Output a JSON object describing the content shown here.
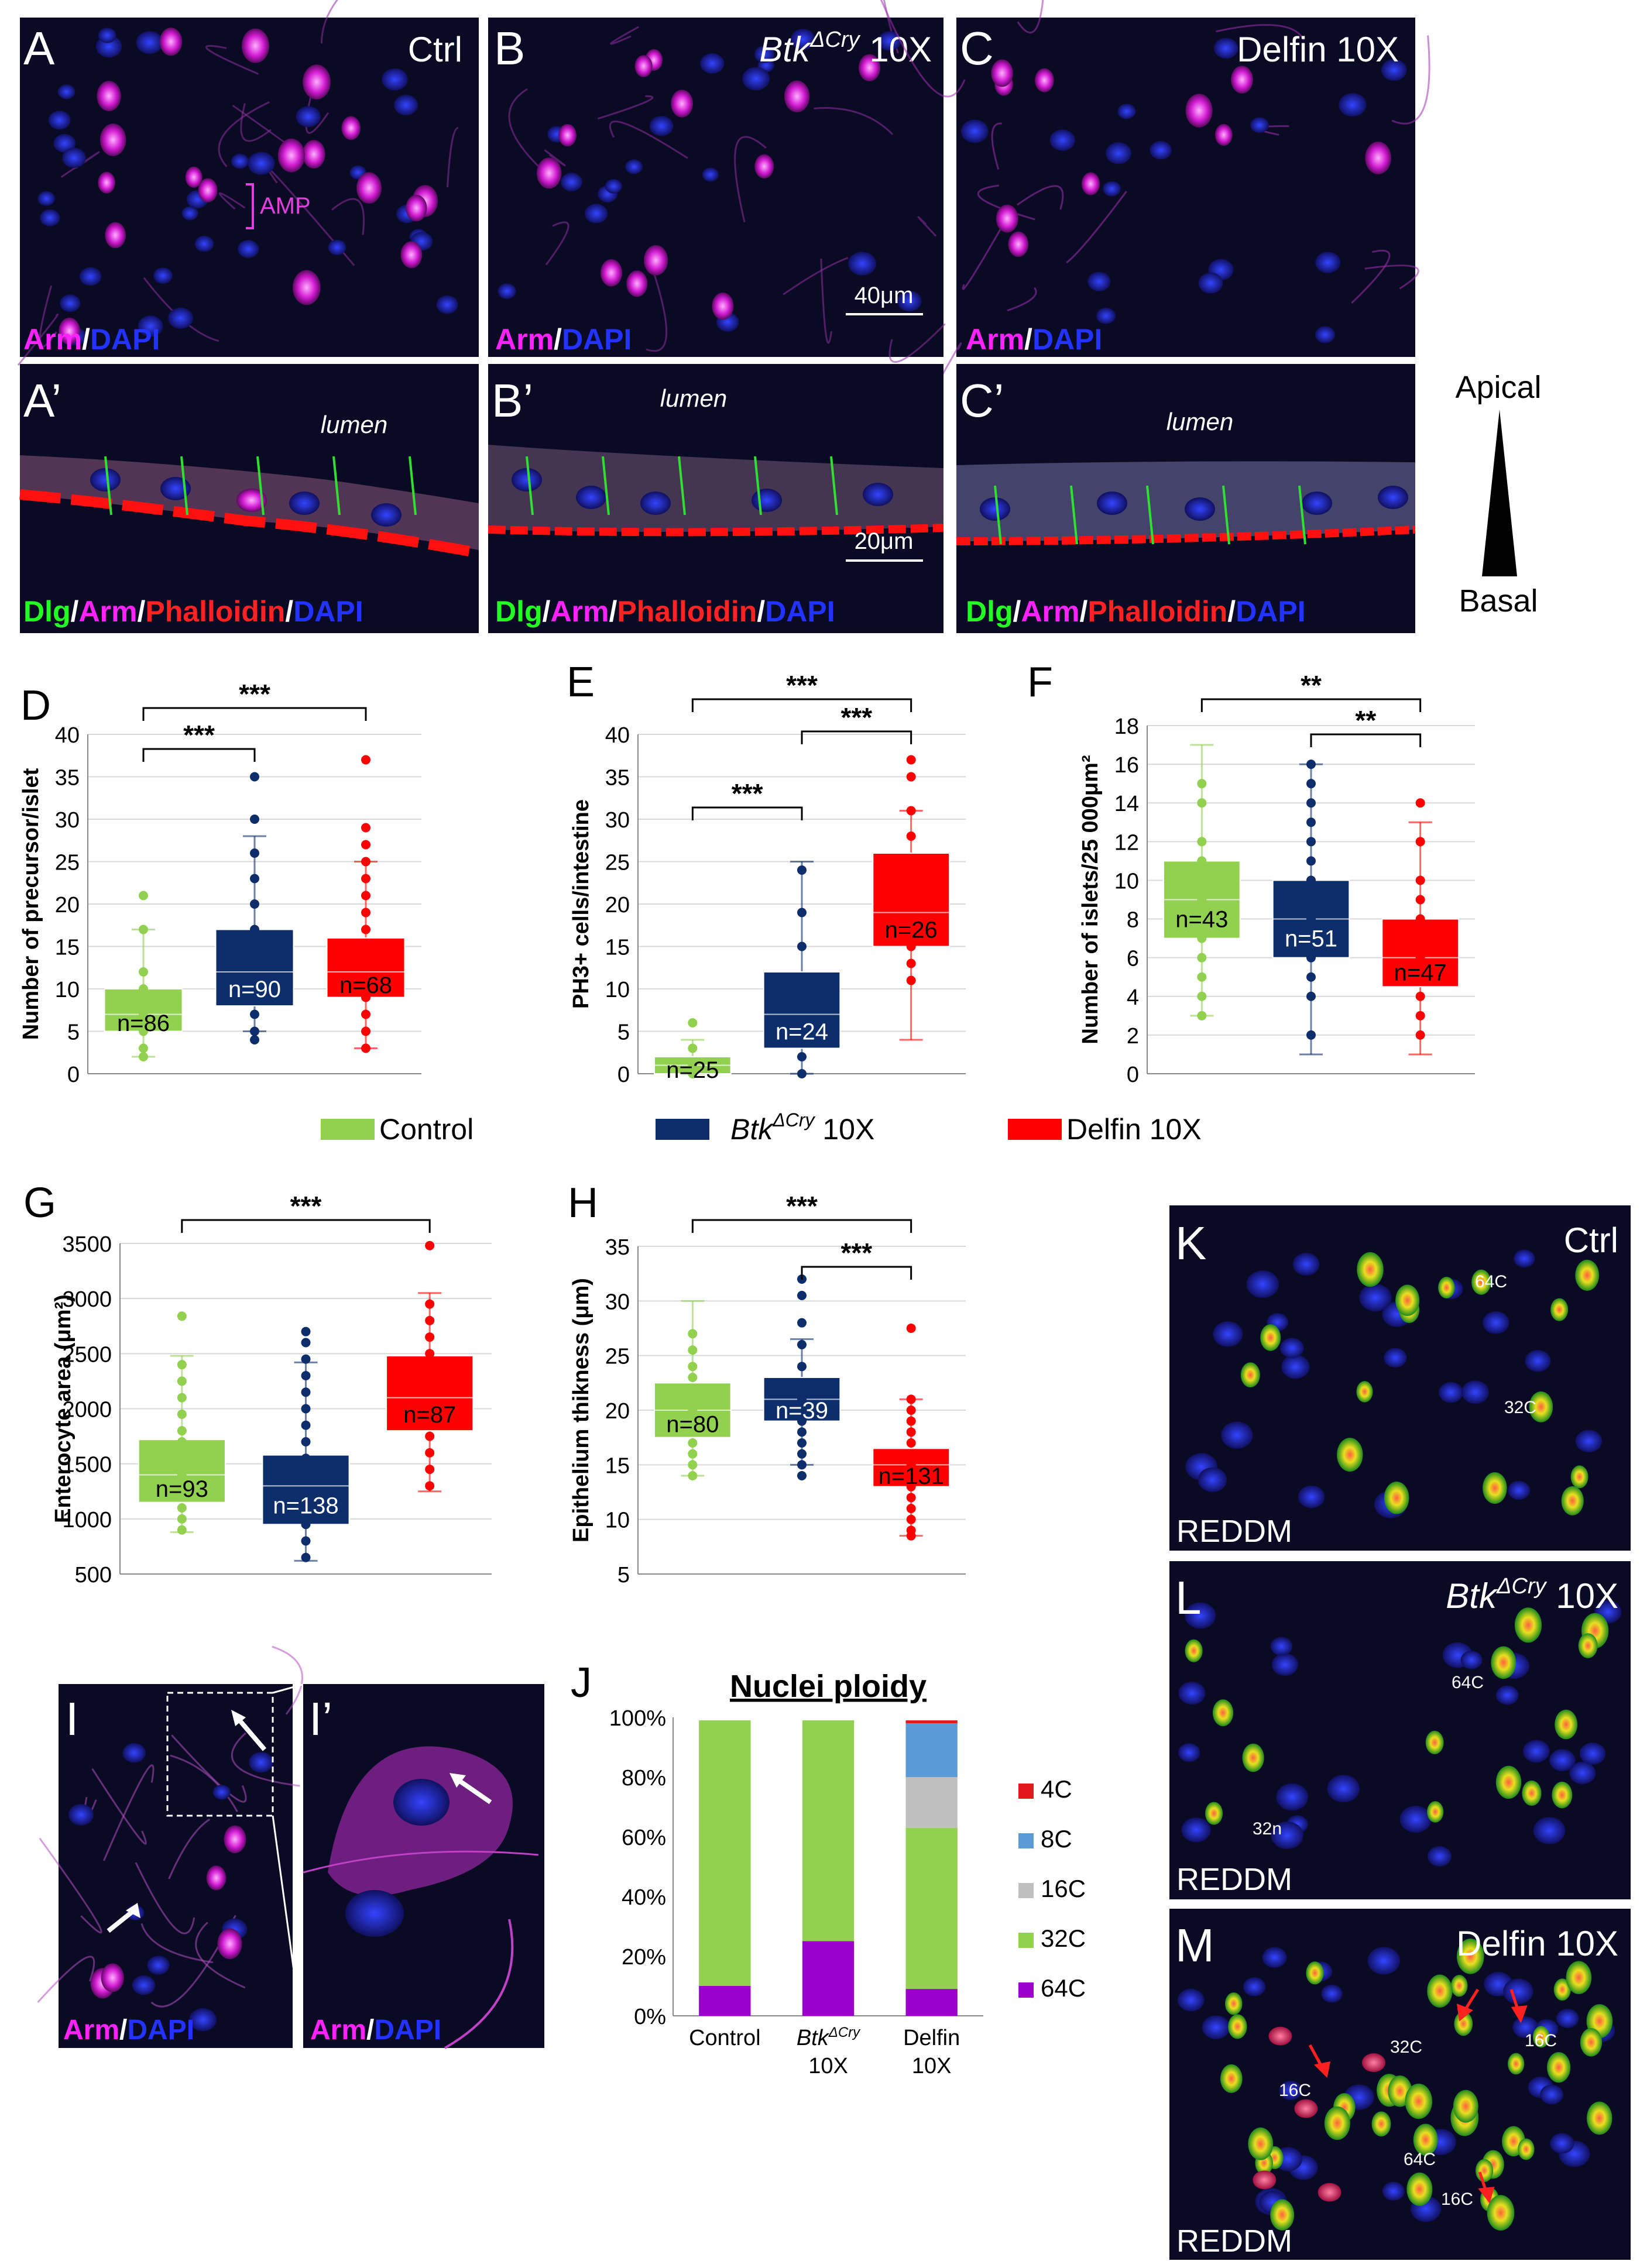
{
  "micro_top": [
    {
      "letter": "A",
      "condition": "Ctrl",
      "stain": [
        "Arm",
        "/",
        "DAPI"
      ],
      "annotation": "AMP"
    },
    {
      "letter": "B",
      "condition_italic": "Btk",
      "condition_sup": "ΔCry",
      "condition_rest": " 10X",
      "stain": [
        "Arm",
        "/",
        "DAPI"
      ],
      "scalebar": "40μm"
    },
    {
      "letter": "C",
      "condition": "Delfin 10X",
      "stain": [
        "Arm",
        "/",
        "DAPI"
      ]
    }
  ],
  "micro_mid": [
    {
      "letter": "A’",
      "lumen": "lumen",
      "stain": [
        "Dlg",
        "/",
        "Arm",
        "/",
        "Phalloidin",
        "/",
        "DAPI"
      ]
    },
    {
      "letter": "B’",
      "lumen": "lumen",
      "scalebar": "20μm",
      "stain": [
        "Dlg",
        "/",
        "Arm",
        "/",
        "Phalloidin",
        "/",
        "DAPI"
      ]
    },
    {
      "letter": "C’",
      "lumen": "lumen",
      "stain": [
        "Dlg",
        "/",
        "Arm",
        "/",
        "Phalloidin",
        "/",
        "DAPI"
      ]
    }
  ],
  "axis_side": {
    "apical": "Apical",
    "basal": "Basal"
  },
  "legend": {
    "control": "Control",
    "btk_italic": "Btk",
    "btk_sup": "ΔCry",
    "btk_rest": " 10X",
    "delfin": "Delfin 10X",
    "colors": {
      "control": "#92d050",
      "btk": "#0d2d6b",
      "delfin": "#ff0000"
    }
  },
  "chart_data": [
    {
      "letter": "D",
      "type": "box",
      "ylabel": "Number of precursor/islet",
      "ylim": [
        0,
        40
      ],
      "yticks": [
        0,
        5,
        10,
        15,
        20,
        25,
        30,
        35,
        40
      ],
      "boxes": [
        {
          "q1": 5,
          "median": 7,
          "q3": 10,
          "min": 2,
          "max": 17,
          "n": "n=86"
        },
        {
          "q1": 8,
          "median": 12,
          "q3": 17,
          "min": 5,
          "max": 28,
          "n": "n=90"
        },
        {
          "q1": 9,
          "median": 12,
          "q3": 16,
          "min": 3,
          "max": 25,
          "n": "n=68"
        }
      ],
      "points": [
        [
          21,
          17,
          12,
          10,
          8,
          7,
          5,
          3,
          2
        ],
        [
          35,
          30,
          26,
          23,
          20,
          17,
          15,
          13,
          11,
          9,
          7,
          5,
          4
        ],
        [
          37,
          29,
          27,
          25,
          23,
          21,
          19,
          17,
          15,
          13,
          11,
          9,
          7,
          5,
          3
        ]
      ],
      "sig": [
        {
          "from": 0,
          "to": 1,
          "label": "***"
        },
        {
          "from": 0,
          "to": 2,
          "label": "***"
        }
      ]
    },
    {
      "letter": "E",
      "type": "box",
      "ylabel": "PH3+ cells/intestine",
      "ylim": [
        0,
        40
      ],
      "yticks": [
        0,
        5,
        10,
        15,
        20,
        25,
        30,
        35,
        40
      ],
      "boxes": [
        {
          "q1": 0,
          "median": 1,
          "q3": 2,
          "min": 0,
          "max": 4,
          "n": "n=25"
        },
        {
          "q1": 3,
          "median": 7,
          "q3": 12,
          "min": 0,
          "max": 25,
          "n": "n=24"
        },
        {
          "q1": 15,
          "median": 19,
          "q3": 26,
          "min": 4,
          "max": 31,
          "n": "n=26"
        }
      ],
      "points": [
        [
          6,
          3,
          1,
          0
        ],
        [
          24,
          19,
          15,
          10,
          8,
          5,
          2,
          0
        ],
        [
          37,
          35,
          31,
          28,
          24,
          21,
          18,
          15,
          13,
          11
        ]
      ],
      "sig": [
        {
          "from": 0,
          "to": 1,
          "label": "***"
        },
        {
          "from": 1,
          "to": 2,
          "label": "***"
        },
        {
          "from": 0,
          "to": 2,
          "label": "***"
        }
      ]
    },
    {
      "letter": "F",
      "type": "box",
      "ylabel": "Number of islets/25 000μm²",
      "ylim": [
        0,
        18
      ],
      "yticks": [
        0,
        2,
        4,
        6,
        8,
        10,
        12,
        14,
        16,
        18
      ],
      "boxes": [
        {
          "q1": 7,
          "median": 9,
          "q3": 11,
          "min": 3,
          "max": 17,
          "n": "n=43"
        },
        {
          "q1": 6,
          "median": 8,
          "q3": 10,
          "min": 1,
          "max": 16,
          "n": "n=51"
        },
        {
          "q1": 4.5,
          "median": 6,
          "q3": 8,
          "min": 1,
          "max": 13,
          "n": "n=47"
        }
      ],
      "points": [
        [
          15,
          14,
          12,
          11,
          10,
          9,
          8,
          7,
          6,
          5,
          4,
          3
        ],
        [
          16,
          15,
          14,
          13,
          12,
          11,
          10,
          9,
          8,
          7,
          6,
          5,
          4,
          2
        ],
        [
          14,
          12,
          10,
          9,
          8,
          7,
          6,
          5,
          4,
          3,
          2
        ]
      ],
      "sig": [
        {
          "from": 1,
          "to": 2,
          "label": "**"
        },
        {
          "from": 0,
          "to": 2,
          "label": "**"
        }
      ]
    },
    {
      "letter": "G",
      "type": "box",
      "ylabel": "Enterocyte area (μm²)",
      "ylim": [
        500,
        3500
      ],
      "yticks": [
        500,
        1000,
        1500,
        2000,
        2500,
        3000,
        3500
      ],
      "boxes": [
        {
          "q1": 1150,
          "median": 1400,
          "q3": 1720,
          "min": 880,
          "max": 2480,
          "n": "n=93"
        },
        {
          "q1": 950,
          "median": 1300,
          "q3": 1580,
          "min": 620,
          "max": 2420,
          "n": "n=138"
        },
        {
          "q1": 1800,
          "median": 2100,
          "q3": 2480,
          "min": 1250,
          "max": 3050,
          "n": "n=87"
        }
      ],
      "points": [
        [
          2840,
          2400,
          2250,
          2100,
          1950,
          1800,
          1700,
          1600,
          1500,
          1400,
          1300,
          1200,
          1100,
          1000,
          900
        ],
        [
          2700,
          2600,
          2450,
          2300,
          2150,
          2000,
          1850,
          1700,
          1550,
          1400,
          1250,
          1100,
          950,
          800,
          650
        ],
        [
          3480,
          2950,
          2800,
          2650,
          2500,
          2350,
          2200,
          2050,
          1900,
          1750,
          1600,
          1450,
          1300
        ]
      ],
      "sig": [
        {
          "from": 0,
          "to": 2,
          "label": "***"
        }
      ]
    },
    {
      "letter": "H",
      "type": "box",
      "ylabel": "Epithelium thikness (μm)",
      "ylim": [
        5,
        35
      ],
      "yticks": [
        5,
        10,
        15,
        20,
        25,
        30,
        35
      ],
      "boxes": [
        {
          "q1": 17.5,
          "median": 20,
          "q3": 22.5,
          "min": 14,
          "max": 30,
          "n": "n=80"
        },
        {
          "q1": 19,
          "median": 21,
          "q3": 23,
          "min": 15,
          "max": 26.5,
          "n": "n=39"
        },
        {
          "q1": 13,
          "median": 15,
          "q3": 16.5,
          "min": 8.5,
          "max": 21,
          "n": "n=131"
        }
      ],
      "points": [
        [
          27,
          25.5,
          24,
          23,
          22,
          21,
          20,
          19,
          18,
          17,
          16,
          15,
          14
        ],
        [
          32,
          30.5,
          28,
          26,
          24,
          22.5,
          21,
          20,
          19,
          18,
          17,
          16,
          15,
          14
        ],
        [
          27.5,
          21,
          20,
          19,
          18,
          17,
          16,
          15,
          14,
          13,
          12,
          11,
          10,
          9,
          8.5
        ]
      ],
      "sig": [
        {
          "from": 1,
          "to": 2,
          "label": "***"
        },
        {
          "from": 0,
          "to": 2,
          "label": "***"
        }
      ]
    },
    {
      "letter": "J",
      "type": "bar",
      "stacked": true,
      "title": "Nuclei ploidy",
      "yticks": [
        "0%",
        "20%",
        "40%",
        "60%",
        "80%",
        "100%"
      ],
      "categories": [
        [
          "Control"
        ],
        [
          "Btk",
          "ΔCry",
          "10X"
        ],
        [
          "Delfin",
          "10X"
        ]
      ],
      "series": [
        {
          "name": "64C",
          "color": "#9900cc",
          "values": [
            10,
            25,
            9
          ]
        },
        {
          "name": "32C",
          "color": "#92d050",
          "values": [
            89,
            74,
            54
          ]
        },
        {
          "name": "16C",
          "color": "#bfbfbf",
          "values": [
            0,
            0,
            17
          ]
        },
        {
          "name": "8C",
          "color": "#5b9bd5",
          "values": [
            0,
            0,
            18
          ]
        },
        {
          "name": "4C",
          "color": "#e31a1c",
          "values": [
            0,
            0,
            1
          ]
        }
      ]
    }
  ],
  "micro_i": {
    "letter": "I",
    "letter_zoom": "I’",
    "stain": [
      "Arm",
      "/",
      "DAPI"
    ]
  },
  "micro_right": [
    {
      "letter": "K",
      "condition": "Ctrl",
      "label": "REDDM",
      "annot": [
        {
          "t": "64C"
        },
        {
          "t": "32C"
        }
      ]
    },
    {
      "letter": "L",
      "condition_italic": "Btk",
      "condition_sup": "ΔCry",
      "condition_rest": " 10X",
      "label": "REDDM",
      "annot": [
        {
          "t": "64C"
        },
        {
          "t": "32n"
        }
      ]
    },
    {
      "letter": "M",
      "condition": "Delfin 10X",
      "label": "REDDM",
      "annot": [
        {
          "t": "16C"
        },
        {
          "t": "32C"
        },
        {
          "t": "16C"
        },
        {
          "t": "64C"
        },
        {
          "t": "16C"
        }
      ]
    }
  ]
}
